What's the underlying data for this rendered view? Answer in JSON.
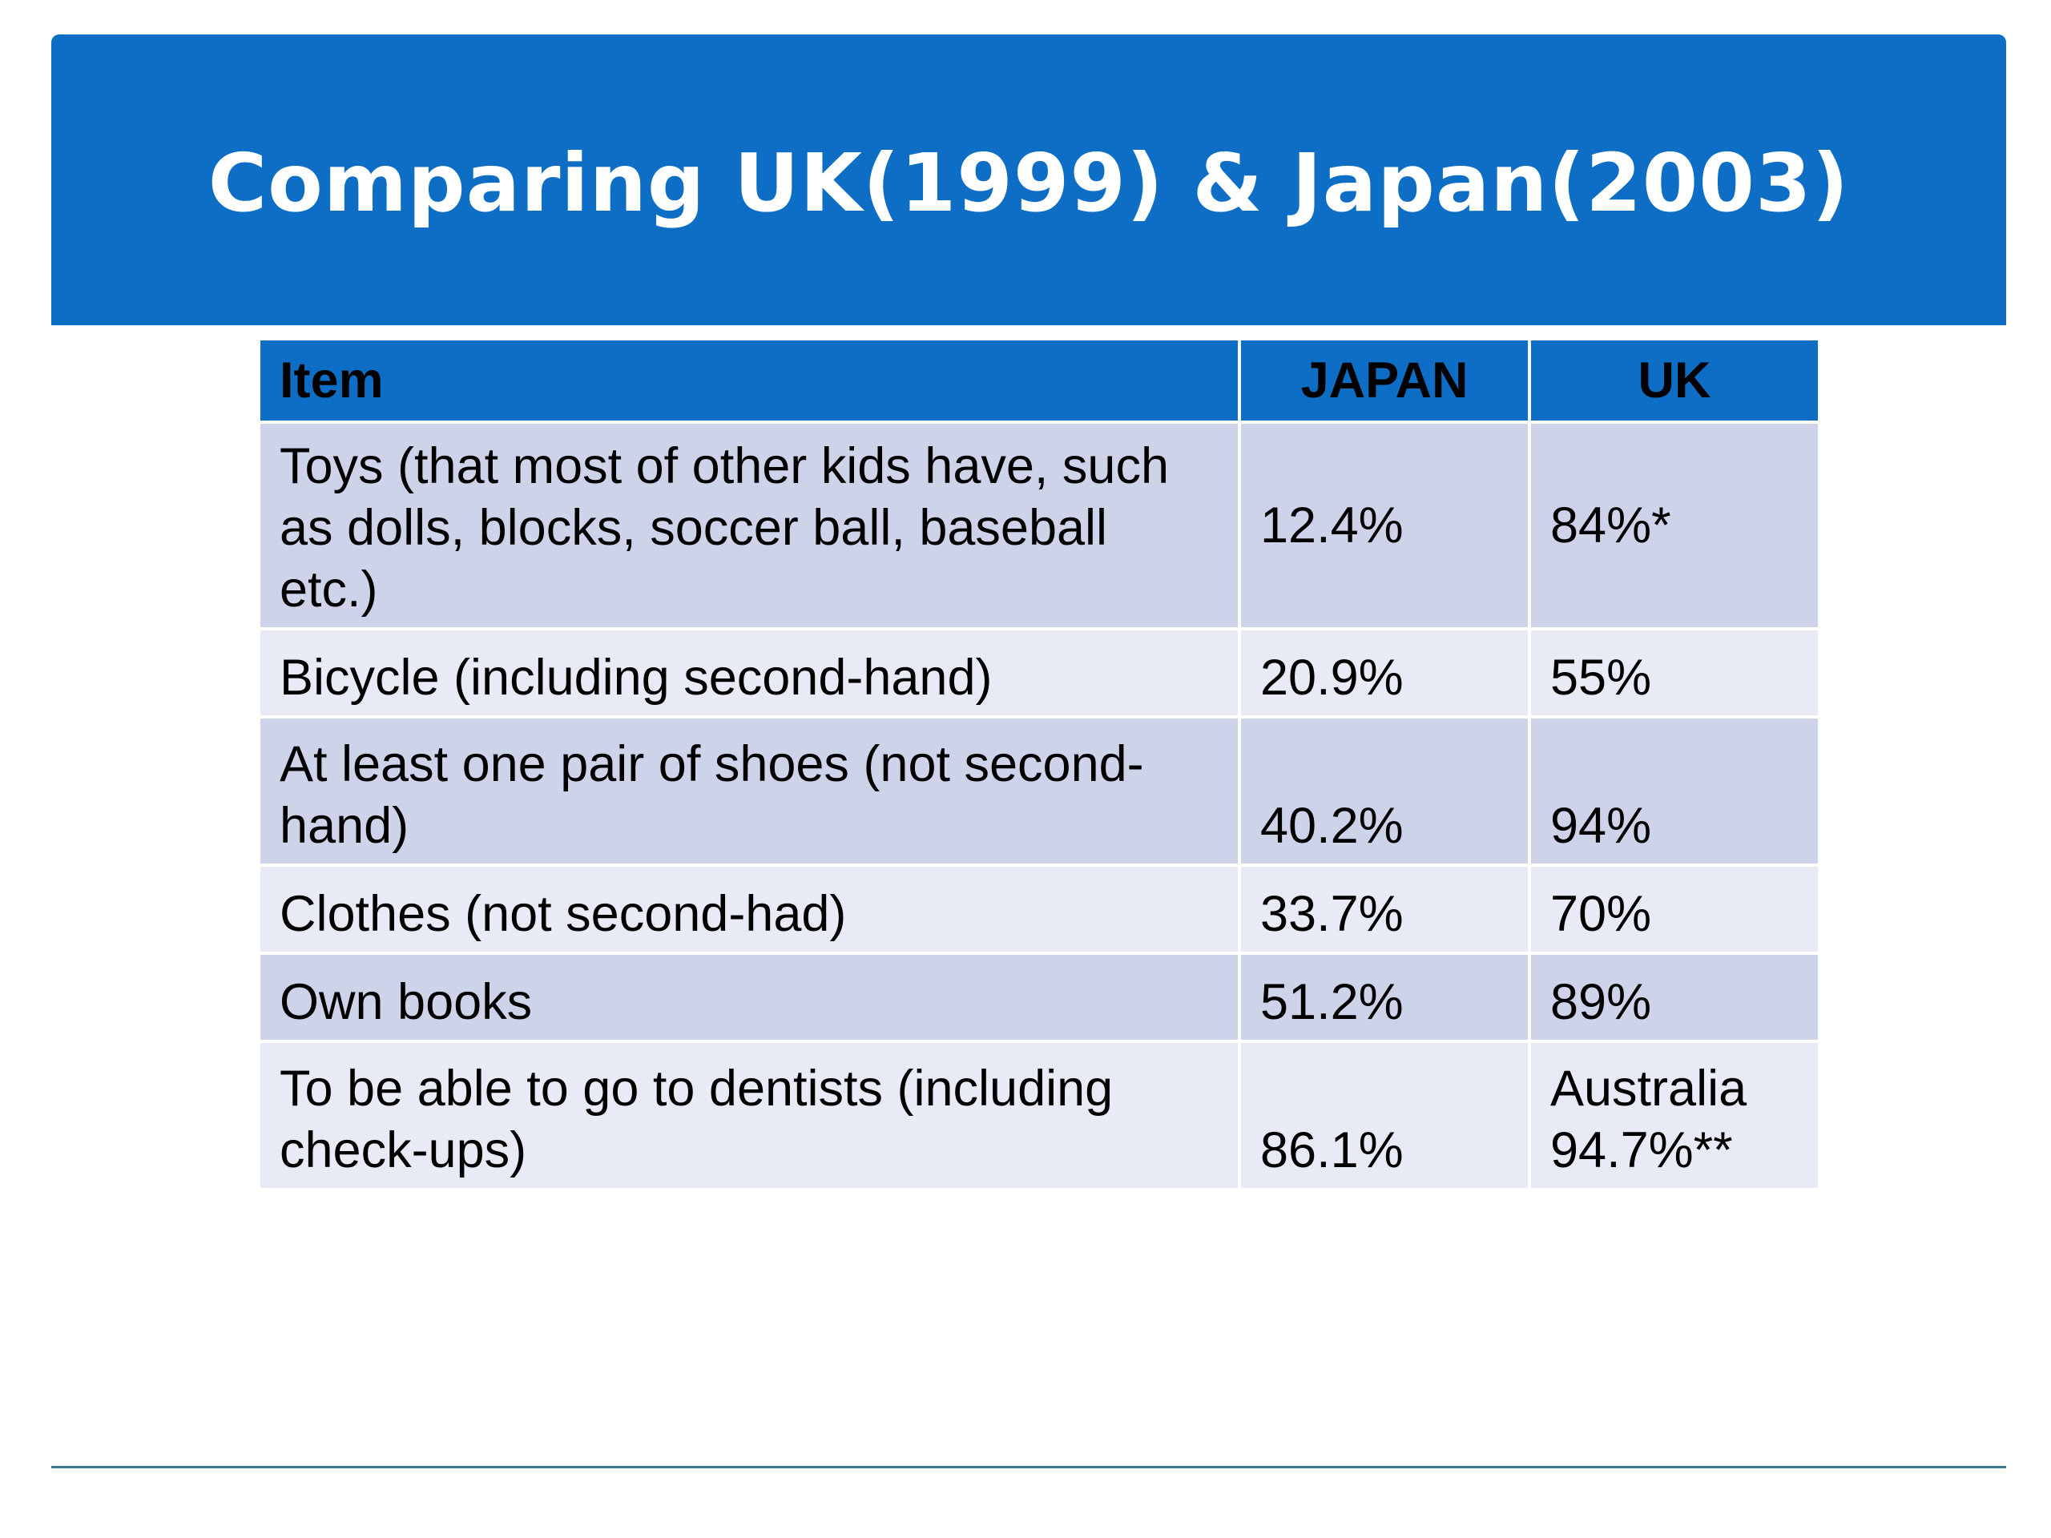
{
  "slide": {
    "title": "Comparing UK(1999) & Japan(2003)"
  },
  "table": {
    "headers": {
      "item": "Item",
      "japan": "JAPAN",
      "uk": "UK"
    },
    "rows": [
      {
        "item": "Toys   (that most of other kids have, such as dolls, blocks, soccer ball, baseball etc.)",
        "japan": "12.4%",
        "uk": "84%*"
      },
      {
        "item": "Bicycle (including second-hand)",
        "japan": "20.9%",
        "uk": "55%"
      },
      {
        "item": "At least one pair of shoes (not second-hand)",
        "japan": "40.2%",
        "uk": "94%"
      },
      {
        "item": "Clothes (not second-had)",
        "japan": "33.7%",
        "uk": "70%"
      },
      {
        "item": "Own books",
        "japan": "51.2%",
        "uk": "89%"
      },
      {
        "item": "To be able to go to dentists (including check-ups)",
        "japan": "86.1%",
        "uk": "Australia 94.7%**"
      }
    ]
  },
  "colors": {
    "accent": "#0e6ec5",
    "row_odd": "#cdd4ea",
    "row_even": "#e8ebf5",
    "footer_rule": "#3f7a93"
  }
}
